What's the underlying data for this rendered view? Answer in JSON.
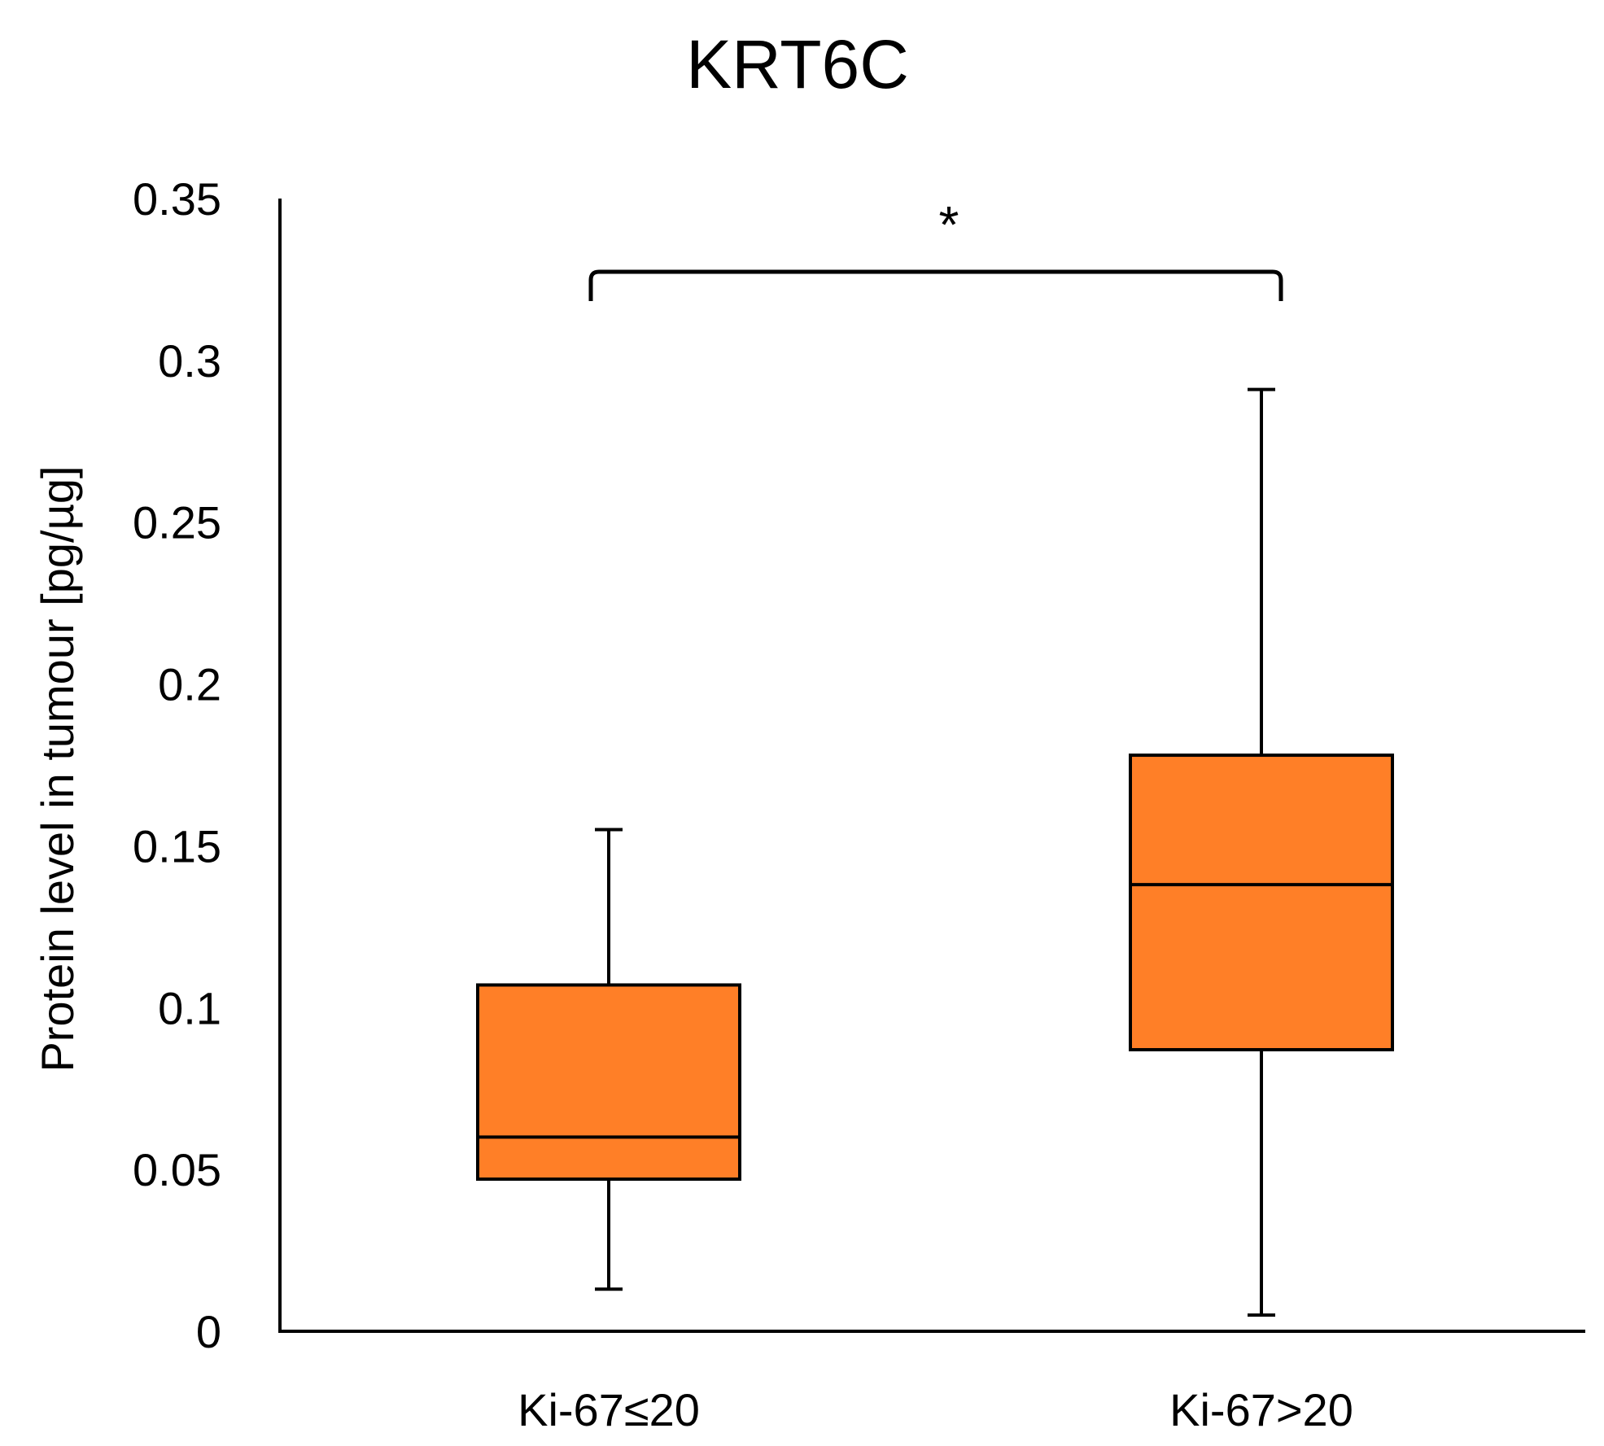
{
  "chart_data": {
    "type": "box",
    "title": "KRT6C",
    "xlabel": "",
    "ylabel": "Protein level in tumour [pg/µg]",
    "ylim": [
      0,
      0.35
    ],
    "yticks": [
      0,
      0.05,
      0.1,
      0.15,
      0.2,
      0.25,
      0.3,
      0.35
    ],
    "ytick_labels": [
      "0",
      "0.05",
      "0.1",
      "0.15",
      "0.2",
      "0.25",
      "0.3",
      "0.35"
    ],
    "grid": false,
    "legend": "none",
    "categories": [
      "Ki-67≤20",
      "Ki-67>20"
    ],
    "boxes": [
      {
        "name": "Ki-67≤20",
        "min": 0.013,
        "q1": 0.047,
        "median": 0.06,
        "q3": 0.107,
        "max": 0.155
      },
      {
        "name": "Ki-67>20",
        "min": 0.005,
        "q1": 0.087,
        "median": 0.138,
        "q3": 0.178,
        "max": 0.291
      }
    ],
    "significance": {
      "label": "*",
      "between": [
        0,
        1
      ]
    },
    "colors": {
      "box_fill": "#FF7F27",
      "stroke": "#000000",
      "text": "#000000",
      "background": "#FFFFFF"
    }
  }
}
